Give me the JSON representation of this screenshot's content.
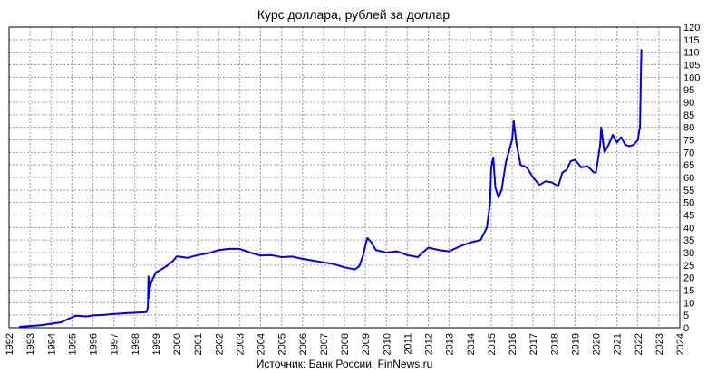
{
  "chart_data": {
    "type": "line",
    "title": "Курс доллара, рублей за доллар",
    "source": "Источник: Банк России, FinNews.ru",
    "xlabel": "",
    "ylabel": "",
    "xlim": [
      1992,
      2024
    ],
    "ylim": [
      0,
      120
    ],
    "x_ticks": [
      "1992",
      "1993",
      "1994",
      "1995",
      "1996",
      "1997",
      "1998",
      "1999",
      "2000",
      "2001",
      "2002",
      "2003",
      "2004",
      "2005",
      "2006",
      "2007",
      "2008",
      "2009",
      "2010",
      "2011",
      "2012",
      "2013",
      "2014",
      "2015",
      "2016",
      "2017",
      "2018",
      "2019",
      "2020",
      "2021",
      "2022",
      "2023",
      "2024"
    ],
    "y_ticks": [
      "0",
      "5",
      "10",
      "15",
      "20",
      "25",
      "30",
      "35",
      "40",
      "45",
      "50",
      "55",
      "60",
      "65",
      "70",
      "75",
      "80",
      "85",
      "90",
      "95",
      "100",
      "105",
      "110",
      "115",
      "120"
    ],
    "grid": true,
    "y_axis_side": "right",
    "colors": {
      "line": "#0000ee",
      "grid": "#999999",
      "axis": "#000000"
    },
    "series": [
      {
        "x": [
          1992.5,
          1993.0,
          1993.5,
          1994.0,
          1994.5,
          1994.9,
          1995.2,
          1995.4,
          1995.7,
          1996.0,
          1996.5,
          1997.0,
          1997.5,
          1998.0,
          1998.55,
          1998.62,
          1998.65,
          1998.68,
          1998.72,
          1998.8,
          1999.0,
          1999.5,
          1999.8,
          2000.0,
          2000.5,
          2001.0,
          2001.5,
          2002.0,
          2002.5,
          2003.0,
          2003.5,
          2004.0,
          2004.5,
          2005.0,
          2005.5,
          2006.0,
          2006.5,
          2007.0,
          2007.5,
          2008.0,
          2008.5,
          2008.7,
          2008.9,
          2009.0,
          2009.1,
          2009.25,
          2009.5,
          2010.0,
          2010.5,
          2011.0,
          2011.5,
          2012.0,
          2012.5,
          2013.0,
          2013.5,
          2014.0,
          2014.5,
          2014.8,
          2014.95,
          2015.0,
          2015.1,
          2015.2,
          2015.35,
          2015.5,
          2015.7,
          2015.9,
          2016.0,
          2016.08,
          2016.2,
          2016.4,
          2016.7,
          2017.0,
          2017.3,
          2017.6,
          2017.9,
          2018.2,
          2018.4,
          2018.6,
          2018.8,
          2019.0,
          2019.3,
          2019.6,
          2019.9,
          2020.0,
          2020.2,
          2020.25,
          2020.4,
          2020.6,
          2020.8,
          2021.0,
          2021.2,
          2021.4,
          2021.6,
          2021.8,
          2022.0,
          2022.05,
          2022.1,
          2022.13,
          2022.15,
          2022.17
        ],
        "y": [
          0.4,
          0.7,
          1.0,
          1.6,
          2.2,
          3.8,
          4.8,
          4.7,
          4.5,
          4.9,
          5.1,
          5.5,
          5.8,
          6.0,
          6.2,
          8.0,
          20.5,
          12.0,
          16.0,
          18.5,
          22.0,
          24.5,
          26.5,
          28.5,
          27.9,
          29.0,
          29.7,
          31.0,
          31.5,
          31.5,
          30.0,
          28.8,
          29.0,
          28.2,
          28.4,
          27.5,
          26.8,
          26.1,
          25.4,
          24.1,
          23.3,
          24.5,
          29.0,
          33.0,
          35.8,
          34.5,
          31.0,
          30.0,
          30.5,
          29.0,
          28.2,
          32.0,
          31.0,
          30.5,
          32.5,
          34.0,
          35.0,
          40.0,
          50.0,
          64.0,
          68.0,
          56.0,
          52.0,
          55.0,
          66.0,
          72.0,
          75.0,
          82.5,
          74.0,
          65.0,
          64.0,
          60.0,
          57.0,
          58.5,
          58.0,
          56.5,
          62.0,
          63.0,
          66.5,
          67.0,
          64.0,
          64.5,
          62.0,
          62.0,
          73.0,
          80.0,
          70.0,
          73.0,
          77.0,
          74.0,
          76.0,
          73.0,
          72.5,
          73.0,
          75.0,
          78.0,
          80.0,
          95.0,
          104.0,
          111.0
        ]
      }
    ]
  }
}
